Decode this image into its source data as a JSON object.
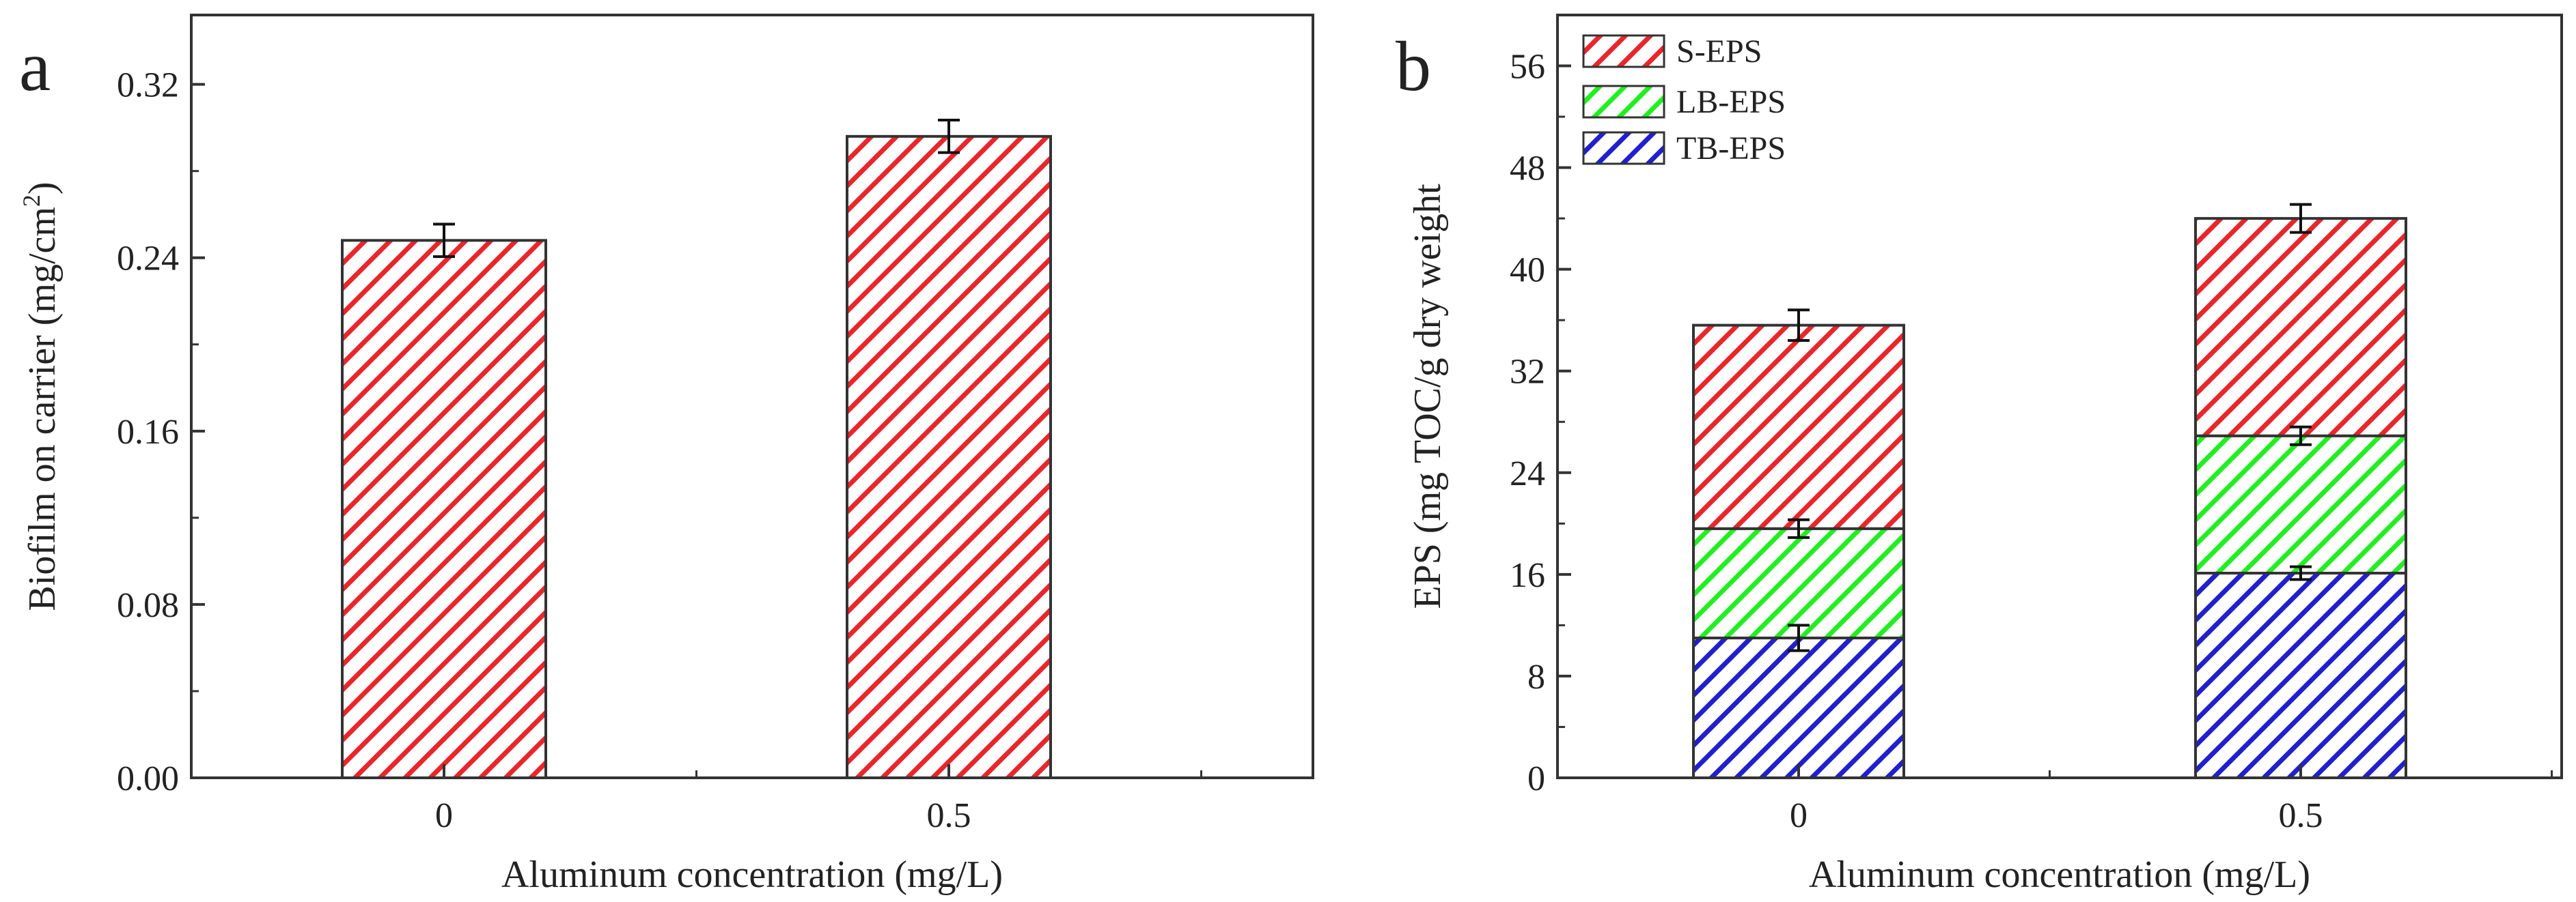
{
  "chart_data": [
    {
      "type": "bar",
      "panel_label": "a",
      "title": "",
      "xlabel": "Aluminum concentration (mg/L)",
      "ylabel_main": "Biofilm on carrier (mg/cm",
      "ylabel_sup": "2",
      "ylabel_end": ")",
      "ylim": [
        0,
        0.352
      ],
      "yticks": [
        0,
        0.08,
        0.16,
        0.24,
        0.32
      ],
      "ytick_labels": [
        "0.00",
        "0.08",
        "0.16",
        "0.24",
        "0.32"
      ],
      "categories": [
        "0",
        "0.5"
      ],
      "series": [
        {
          "name": "Biofilm",
          "values": [
            0.248,
            0.296
          ],
          "errors": [
            0.0075,
            0.0075
          ]
        }
      ],
      "grid": false
    },
    {
      "type": "bar",
      "stacked": true,
      "panel_label": "b",
      "title": "",
      "xlabel": "Aluminum concentration (mg/L)",
      "ylabel": "EPS (mg TOC/g dry weight",
      "ylim": [
        0,
        60
      ],
      "yticks": [
        0,
        8,
        16,
        24,
        32,
        40,
        48,
        56
      ],
      "ytick_labels": [
        "0",
        "8",
        "16",
        "24",
        "32",
        "40",
        "48",
        "56"
      ],
      "categories": [
        "0",
        "0.5"
      ],
      "legend_position": "top-left",
      "series": [
        {
          "name": "TB-EPS",
          "values": [
            11.0,
            16.1
          ],
          "errors": [
            1.0,
            0.5
          ]
        },
        {
          "name": "LB-EPS",
          "values": [
            8.6,
            10.8
          ],
          "errors": [
            0.7,
            0.7
          ]
        },
        {
          "name": "S-EPS",
          "values": [
            16.0,
            17.1
          ],
          "errors": [
            1.2,
            1.1
          ]
        }
      ],
      "legend_order": [
        "S-EPS",
        "LB-EPS",
        "TB-EPS"
      ],
      "grid": false
    }
  ],
  "colors": {
    "S-EPS": "#e8262b",
    "LB-EPS": "#22ee22",
    "TB-EPS": "#2020cc",
    "Biofilm": "#e8262b"
  }
}
